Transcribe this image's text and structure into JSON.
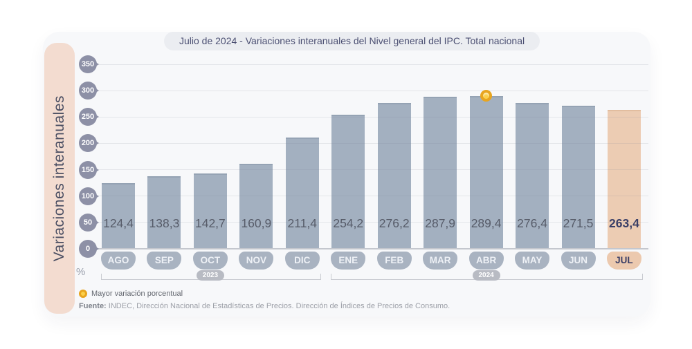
{
  "title": "Julio de 2024 - Variaciones interanuales del Nivel general del IPC. Total nacional",
  "sidebar_label": "Variaciones interanuales",
  "chart_data": {
    "type": "bar",
    "title": "Julio de 2024 - Variaciones interanuales del Nivel general del IPC. Total nacional",
    "ylabel": "Variaciones interanuales",
    "unit_label": "%",
    "categories": [
      "AGO",
      "SEP",
      "OCT",
      "NOV",
      "DIC",
      "ENE",
      "FEB",
      "MAR",
      "ABR",
      "MAY",
      "JUN",
      "JUL"
    ],
    "values": [
      124.4,
      138.3,
      142.7,
      160.9,
      211.4,
      254.2,
      276.2,
      287.9,
      289.4,
      276.4,
      271.5,
      263.4
    ],
    "value_labels": [
      "124,4",
      "138,3",
      "142,7",
      "160,9",
      "211,4",
      "254,2",
      "276,2",
      "287,9",
      "289,4",
      "276,4",
      "271,5",
      "263,4"
    ],
    "y_ticks": [
      0,
      50,
      100,
      150,
      200,
      250,
      300,
      350
    ],
    "ylim": [
      0,
      350
    ],
    "grid": true,
    "highlight_index": 11,
    "max_marker_index": 8,
    "year_groups": [
      {
        "label": "2023",
        "from": 0,
        "to": 4
      },
      {
        "label": "2024",
        "from": 5,
        "to": 11
      }
    ],
    "colors": {
      "bar": "#a3b0c0",
      "highlight_bar": "#ecccb3",
      "marker": "#f2b32a",
      "sidebar": "#f3dcd0"
    }
  },
  "legend": {
    "marker_label": "Mayor variación porcentual"
  },
  "source": {
    "prefix": "Fuente:",
    "text": " INDEC, Dirección Nacional de Estadísticas de Precios. Dirección de Índices de Precios de Consumo."
  }
}
